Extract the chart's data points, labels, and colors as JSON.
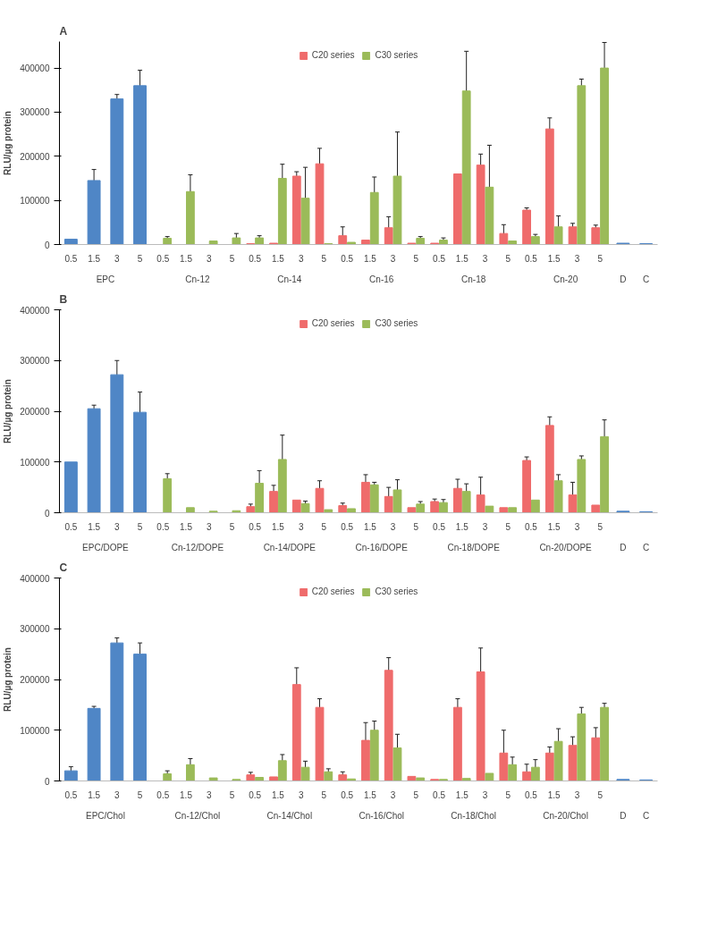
{
  "chart_data": [
    {
      "type": "bar",
      "title": "A",
      "ylabel": "RLU/µg protein",
      "ylim": [
        0,
        460000
      ],
      "yticks": [
        0,
        100000,
        200000,
        300000,
        400000
      ],
      "grid": false,
      "legend": "top",
      "categories": [
        "0.5",
        "1.5",
        "3",
        "5",
        "0.5",
        "1.5",
        "3",
        "5",
        "0.5",
        "1.5",
        "3",
        "5",
        "0.5",
        "1.5",
        "3",
        "5",
        "0.5",
        "1.5",
        "3",
        "5",
        "0.5",
        "1.5",
        "3",
        "5",
        null,
        null
      ],
      "annotations": [
        "EPC",
        "Cn-12",
        "Cn-14",
        "Cn-16",
        "Cn-18",
        "Cn-20",
        "D",
        "C"
      ],
      "series": [
        {
          "color": "#4f86c6",
          "values": [
            12000,
            145000,
            330000,
            360000,
            null,
            null,
            null,
            null,
            null,
            null,
            null,
            null,
            null,
            null,
            null,
            null,
            null,
            null,
            null,
            null,
            null,
            null,
            null,
            null,
            3000,
            2000
          ],
          "errors": [
            null,
            25000,
            10000,
            35000,
            null,
            null,
            null,
            null,
            null,
            null,
            null,
            null,
            null,
            null,
            null,
            null,
            null,
            null,
            null,
            null,
            null,
            null,
            null,
            null,
            null,
            null
          ]
        },
        {
          "name": "C20 series",
          "color": "#ef6b6b",
          "values": [
            null,
            null,
            null,
            null,
            null,
            null,
            null,
            null,
            2000,
            3000,
            155000,
            183000,
            20000,
            10000,
            38000,
            3000,
            3000,
            160000,
            180000,
            25000,
            78000,
            262000,
            40000,
            38000,
            null,
            null
          ],
          "errors": [
            null,
            null,
            null,
            null,
            null,
            null,
            null,
            null,
            null,
            null,
            10000,
            35000,
            20000,
            null,
            25000,
            null,
            null,
            null,
            25000,
            20000,
            5000,
            25000,
            8000,
            6000,
            null,
            null
          ]
        },
        {
          "name": "C30 series",
          "color": "#9bbb59",
          "values": [
            null,
            null,
            null,
            null,
            14000,
            120000,
            8000,
            15000,
            15000,
            150000,
            105000,
            2000,
            5000,
            118000,
            155000,
            14000,
            10000,
            348000,
            130000,
            8000,
            18000,
            40000,
            360000,
            400000,
            null,
            null
          ],
          "errors": [
            null,
            null,
            null,
            null,
            4000,
            38000,
            null,
            10000,
            5000,
            32000,
            70000,
            null,
            null,
            35000,
            100000,
            4000,
            5000,
            90000,
            95000,
            null,
            5000,
            25000,
            15000,
            58000,
            null,
            null
          ]
        }
      ]
    },
    {
      "type": "bar",
      "title": "B",
      "ylabel": "RLU/µg protein",
      "ylim": [
        0,
        400000
      ],
      "yticks": [
        0,
        100000,
        200000,
        300000,
        400000
      ],
      "grid": false,
      "legend": "top",
      "categories": [
        "0.5",
        "1.5",
        "3",
        "5",
        "0.5",
        "1.5",
        "3",
        "5",
        "0.5",
        "1.5",
        "3",
        "5",
        "0.5",
        "1.5",
        "3",
        "5",
        "0.5",
        "1.5",
        "3",
        "5",
        "0.5",
        "1.5",
        "3",
        "5",
        null,
        null
      ],
      "annotations": [
        "EPC/DOPE",
        "Cn-12/DOPE",
        "Cn-14/DOPE",
        "Cn-16/DOPE",
        "Cn-18/DOPE",
        "Cn-20/DOPE",
        "D",
        "C"
      ],
      "series": [
        {
          "color": "#4f86c6",
          "values": [
            100000,
            205000,
            272000,
            198000,
            null,
            null,
            null,
            null,
            null,
            null,
            null,
            null,
            null,
            null,
            null,
            null,
            null,
            null,
            null,
            null,
            null,
            null,
            null,
            null,
            3000,
            2000
          ],
          "errors": [
            null,
            7000,
            28000,
            40000,
            null,
            null,
            null,
            null,
            null,
            null,
            null,
            null,
            null,
            null,
            null,
            null,
            null,
            null,
            null,
            null,
            null,
            null,
            null,
            null,
            null,
            null
          ]
        },
        {
          "name": "C20 series",
          "color": "#ef6b6b",
          "values": [
            null,
            null,
            null,
            null,
            null,
            null,
            null,
            null,
            12000,
            42000,
            25000,
            48000,
            14000,
            60000,
            32000,
            10000,
            22000,
            48000,
            35000,
            10000,
            103000,
            172000,
            35000,
            15000,
            null,
            null
          ],
          "errors": [
            null,
            null,
            null,
            null,
            null,
            null,
            null,
            null,
            5000,
            12000,
            null,
            15000,
            5000,
            15000,
            18000,
            null,
            5000,
            18000,
            35000,
            null,
            7000,
            17000,
            25000,
            null,
            null,
            null
          ]
        },
        {
          "name": "C30 series",
          "color": "#9bbb59",
          "values": [
            null,
            null,
            null,
            null,
            67000,
            10000,
            3000,
            4000,
            58000,
            105000,
            18000,
            6000,
            8000,
            55000,
            45000,
            17000,
            20000,
            42000,
            13000,
            10000,
            25000,
            63000,
            105000,
            150000,
            null,
            null
          ],
          "errors": [
            null,
            null,
            null,
            null,
            10000,
            null,
            null,
            null,
            25000,
            48000,
            5000,
            null,
            null,
            5000,
            20000,
            5000,
            6000,
            15000,
            null,
            null,
            null,
            12000,
            7000,
            33000,
            null,
            null
          ]
        }
      ]
    },
    {
      "type": "bar",
      "title": "C",
      "ylabel": "RLU/µg protein",
      "ylim": [
        0,
        400000
      ],
      "yticks": [
        0,
        100000,
        200000,
        300000,
        400000
      ],
      "grid": false,
      "legend": "top",
      "categories": [
        "0.5",
        "1.5",
        "3",
        "5",
        "0.5",
        "1.5",
        "3",
        "5",
        "0.5",
        "1.5",
        "3",
        "5",
        "0.5",
        "1.5",
        "3",
        "5",
        "0.5",
        "1.5",
        "3",
        "5",
        "0.5",
        "1.5",
        "3",
        "5",
        null,
        null
      ],
      "annotations": [
        "EPC/Chol",
        "Cn-12/Chol",
        "Cn-14/Chol",
        "Cn-16/Chol",
        "Cn-18/Chol",
        "Cn-20/Chol",
        "D",
        "C"
      ],
      "series": [
        {
          "color": "#4f86c6",
          "values": [
            20000,
            143000,
            272000,
            250000,
            null,
            null,
            null,
            null,
            null,
            null,
            null,
            null,
            null,
            null,
            null,
            null,
            null,
            null,
            null,
            null,
            null,
            null,
            null,
            null,
            3000,
            2000
          ],
          "errors": [
            8000,
            4000,
            10000,
            22000,
            null,
            null,
            null,
            null,
            null,
            null,
            null,
            null,
            null,
            null,
            null,
            null,
            null,
            null,
            null,
            null,
            null,
            null,
            null,
            null,
            null,
            null
          ]
        },
        {
          "name": "C20 series",
          "color": "#ef6b6b",
          "values": [
            null,
            null,
            null,
            null,
            null,
            null,
            null,
            null,
            12000,
            8000,
            190000,
            145000,
            12000,
            80000,
            218000,
            9000,
            3000,
            145000,
            215000,
            55000,
            18000,
            55000,
            70000,
            85000,
            null,
            null
          ],
          "errors": [
            null,
            null,
            null,
            null,
            null,
            null,
            null,
            null,
            5000,
            null,
            33000,
            17000,
            6000,
            35000,
            25000,
            null,
            null,
            17000,
            47000,
            45000,
            15000,
            12000,
            17000,
            20000,
            null,
            null
          ]
        },
        {
          "name": "C30 series",
          "color": "#9bbb59",
          "values": [
            null,
            null,
            null,
            null,
            14000,
            32000,
            6000,
            3000,
            7000,
            40000,
            27000,
            18000,
            4000,
            100000,
            65000,
            6000,
            3000,
            5000,
            15000,
            32000,
            27000,
            78000,
            132000,
            145000,
            null,
            null
          ],
          "errors": [
            null,
            null,
            null,
            null,
            6000,
            12000,
            null,
            null,
            null,
            12000,
            12000,
            6000,
            null,
            18000,
            27000,
            null,
            null,
            null,
            null,
            15000,
            15000,
            25000,
            13000,
            8000,
            null,
            null
          ]
        }
      ]
    }
  ]
}
